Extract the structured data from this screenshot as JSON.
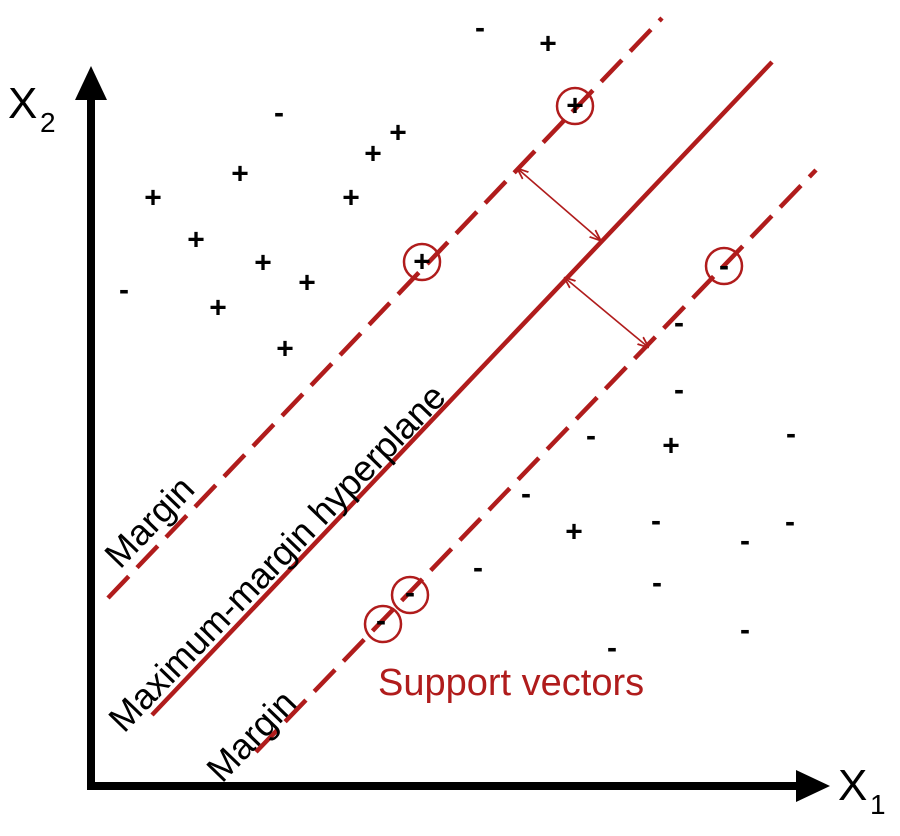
{
  "colors": {
    "accent": "#b01c1c",
    "ink": "#000000"
  },
  "axes": {
    "x_label": "X",
    "x_sub": "1",
    "y_label": "X",
    "y_sub": "2"
  },
  "labels": {
    "hyperplane": "Maximum-margin hyperplane",
    "margin_upper": "Margin",
    "margin_lower": "Margin",
    "support_vectors": "Support vectors"
  },
  "points": [
    {
      "s": "-"
    },
    {
      "s": "+"
    },
    {
      "s": "-"
    },
    {
      "s": "+"
    },
    {
      "s": "+"
    },
    {
      "s": "+"
    },
    {
      "s": "+"
    },
    {
      "s": "+"
    },
    {
      "s": "+"
    },
    {
      "s": "+"
    },
    {
      "s": "+"
    },
    {
      "s": "-"
    },
    {
      "s": "+"
    },
    {
      "s": "+"
    },
    {
      "s": "-"
    },
    {
      "s": "-"
    },
    {
      "s": "-"
    },
    {
      "s": "+"
    },
    {
      "s": "-"
    },
    {
      "s": "-"
    },
    {
      "s": "+"
    },
    {
      "s": "-"
    },
    {
      "s": "-"
    },
    {
      "s": "-"
    },
    {
      "s": "-"
    },
    {
      "s": "-"
    },
    {
      "s": "-"
    },
    {
      "s": "-"
    }
  ],
  "support_vectors": [
    {
      "s": "+"
    },
    {
      "s": "+"
    },
    {
      "s": "-"
    },
    {
      "s": "-"
    },
    {
      "s": "-"
    }
  ]
}
